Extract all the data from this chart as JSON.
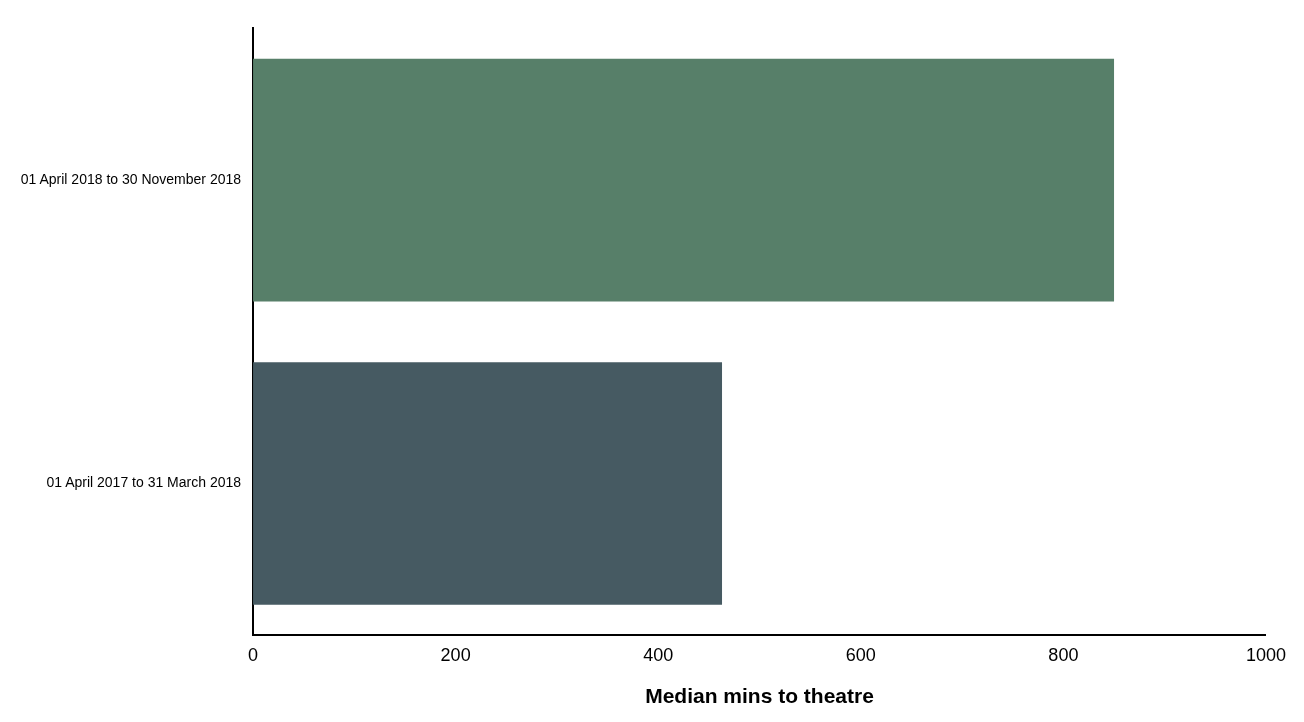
{
  "chart_data": {
    "type": "bar",
    "orientation": "horizontal",
    "xlabel": "Median mins to theatre",
    "categories": [
      "01 April 2018 to 30 November 2018",
      "01 April 2017 to 31 March 2018"
    ],
    "values": [
      850,
      463
    ],
    "colors": [
      "#577f69",
      "#465a62"
    ],
    "xlim": [
      0,
      1000
    ],
    "xticks": [
      0,
      200,
      400,
      600,
      800,
      1000
    ],
    "grid": false,
    "legend": false
  }
}
